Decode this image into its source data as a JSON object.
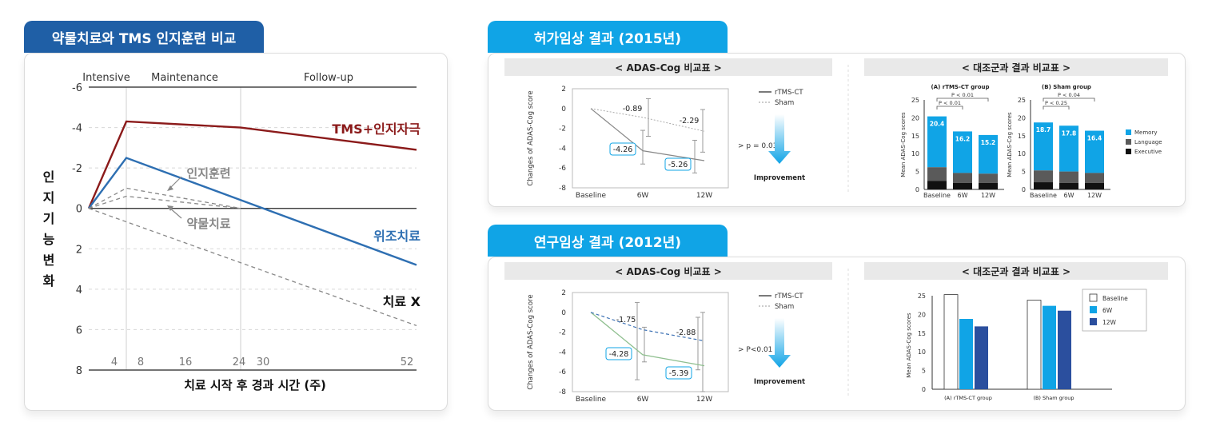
{
  "left": {
    "tab_title": "약물치료와 TMS 인지훈련 비교",
    "chart_data": {
      "type": "line",
      "phases": [
        "Intensive",
        "Maintenance",
        "Follow-up"
      ],
      "ylabel": "인지기능변화",
      "xlabel": "치료 시작 후 경과 시간 (주)",
      "yticks": [
        "-6",
        "-4",
        "-2",
        "0",
        "2",
        "4",
        "6",
        "8"
      ],
      "xticks": [
        "4",
        "8",
        "16",
        "24",
        "30",
        "52"
      ],
      "ylim": [
        -6,
        8
      ],
      "series": [
        {
          "name": "TMS+인지자극",
          "x": [
            0,
            4,
            24,
            52
          ],
          "y": [
            0,
            -4.3,
            -4.0,
            -2.9
          ],
          "color": "#8b1a1a",
          "dash": false
        },
        {
          "name": "위조치료",
          "x": [
            0,
            4,
            52
          ],
          "y": [
            0,
            -2.5,
            2.8
          ],
          "color": "#2e6fb2",
          "dash": false
        },
        {
          "name": "인지훈련",
          "x": [
            0,
            4,
            24
          ],
          "y": [
            0,
            -1.0,
            0
          ],
          "color": "#888888",
          "dash": true
        },
        {
          "name": "약물치료",
          "x": [
            0,
            4,
            24
          ],
          "y": [
            0,
            -0.6,
            0
          ],
          "color": "#888888",
          "dash": true
        },
        {
          "name": "치료 X",
          "x": [
            0,
            52
          ],
          "y": [
            0,
            5.8
          ],
          "color": "#888888",
          "dash": true
        }
      ]
    }
  },
  "top": {
    "tab_title": "허가임상 결과 (2015년)",
    "line_header": "< ADAS-Cog 비교표 >",
    "bar_header": "< 대조군과 결과 비교표 >",
    "line_chart": {
      "type": "line",
      "ylabel": "Changes of ADAS-Cog score",
      "categories": [
        "Baseline",
        "6W",
        "12W"
      ],
      "yticks": [
        "2",
        "0",
        "-2",
        "-4",
        "-6",
        "-8"
      ],
      "ylim": [
        -8,
        2
      ],
      "series": [
        {
          "name": "rTMS-CT",
          "values": [
            0,
            -4.26,
            -5.26
          ],
          "labels": [
            "",
            "-4.26",
            "-5.26"
          ]
        },
        {
          "name": "Sham",
          "values": [
            0,
            -0.89,
            -2.29
          ],
          "labels": [
            "",
            "-0.89",
            "-2.29"
          ]
        }
      ],
      "pvalue": "p = 0.03",
      "improvement": "Improvement"
    },
    "bar_charts": {
      "type": "bar",
      "ylabel": "Mean ADAS-Cog scores",
      "yticks": [
        "25",
        "20",
        "15",
        "10",
        "5",
        "0"
      ],
      "ylim": [
        0,
        25
      ],
      "categories": [
        "Baseline",
        "6W",
        "12W"
      ],
      "legend": [
        "Memory",
        "Language",
        "Executive"
      ],
      "groups": [
        {
          "title": "(A) rTMS-CT group",
          "p1": "P < 0.01",
          "p2": "P < 0.01",
          "totals": [
            20.4,
            16.2,
            15.2
          ],
          "totals_label": [
            "20.4",
            "16.2",
            "15.2"
          ],
          "executive": [
            2.4,
            1.8,
            1.8
          ],
          "language": [
            3.8,
            2.8,
            2.6
          ]
        },
        {
          "title": "(B) Sham group",
          "p1": "P < 0.04",
          "p2": "P < 0.25",
          "totals": [
            18.7,
            17.8,
            16.4
          ],
          "totals_label": [
            "18.7",
            "17.8",
            "16.4"
          ],
          "executive": [
            2.0,
            1.8,
            1.8
          ],
          "language": [
            3.3,
            3.2,
            2.8
          ]
        }
      ]
    }
  },
  "bottom": {
    "tab_title": "연구임상 결과 (2012년)",
    "line_header": "< ADAS-Cog 비교표 >",
    "bar_header": "< 대조군과 결과 비교표 >",
    "line_chart": {
      "type": "line",
      "ylabel": "Changes of ADAS-Cog score",
      "categories": [
        "Baseline",
        "6W",
        "12W"
      ],
      "yticks": [
        "2",
        "0",
        "-2",
        "-4",
        "-6",
        "-8"
      ],
      "ylim": [
        -8,
        2
      ],
      "series": [
        {
          "name": "rTMS-CT",
          "values": [
            0,
            -4.28,
            -5.39
          ],
          "labels": [
            "",
            "-4.28",
            "-5.39"
          ]
        },
        {
          "name": "Sham",
          "values": [
            0,
            -1.75,
            -2.88
          ],
          "labels": [
            "",
            "-1.75",
            "-2.88"
          ]
        }
      ],
      "pvalue": "P<0.01",
      "improvement": "Improvement"
    },
    "bar_chart": {
      "type": "bar",
      "ylabel": "Mean ADAS-Cog scores",
      "yticks": [
        "25",
        "20",
        "15",
        "10",
        "5",
        "0"
      ],
      "ylim": [
        0,
        25
      ],
      "categories": [
        "(A) rTMS-CT group",
        "(B) Sham group"
      ],
      "legend": [
        "Baseline",
        "6W",
        "12W"
      ],
      "series": [
        {
          "name": "Baseline",
          "values": [
            25.3,
            23.8
          ],
          "color": "#ffffff"
        },
        {
          "name": "6W",
          "values": [
            18.8,
            22.3
          ],
          "color": "#10a4e6"
        },
        {
          "name": "12W",
          "values": [
            16.8,
            21.0
          ],
          "color": "#2b4f9e"
        }
      ]
    }
  }
}
